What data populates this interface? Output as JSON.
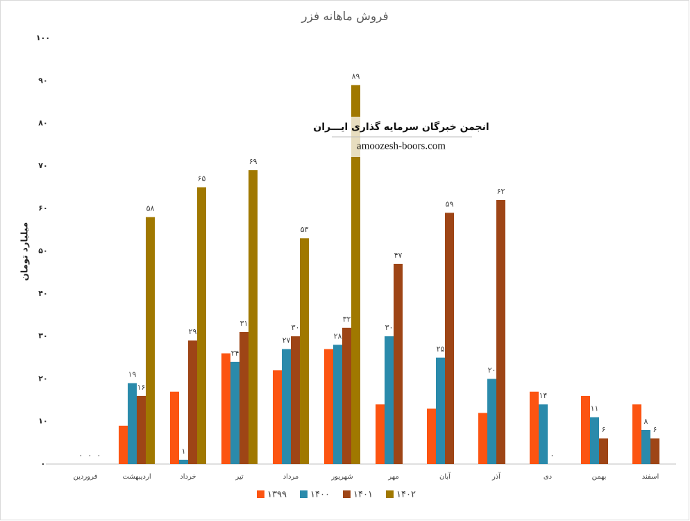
{
  "chart_data": {
    "type": "bar",
    "title": "فروش ماهانه فزر",
    "y_label": "میلیارد تومان",
    "watermark": [
      "انجمن خبرگان سرمایه گذاری ایـــران",
      "amoozesh-boors.com"
    ],
    "categories": [
      "فروردین",
      "اردیبهشت",
      "خرداد",
      "تیر",
      "مرداد",
      "شهریور",
      "مهر",
      "آبان",
      "آذر",
      "دی",
      "بهمن",
      "اسفند"
    ],
    "series": [
      {
        "name": "۱۳۹۹",
        "color": "#fc5411",
        "values": [
          0,
          9,
          17,
          26,
          22,
          27,
          14,
          13,
          12,
          17,
          16,
          14
        ]
      },
      {
        "name": "۱۴۰۰",
        "color": "#2a8aab",
        "values": [
          0,
          19,
          1,
          24,
          27,
          28,
          30,
          25,
          20,
          14,
          11,
          8
        ],
        "value_labels": [
          "۰",
          "۱۹",
          "۱",
          "۲۴",
          "۲۷",
          "۲۸",
          "۳۰",
          "۲۵",
          "۲۰",
          "۱۴",
          "۱۱",
          "۸"
        ]
      },
      {
        "name": "۱۴۰۱",
        "color": "#9e4516",
        "values": [
          0,
          16,
          29,
          31,
          30,
          32,
          47,
          59,
          62,
          0,
          6,
          6
        ],
        "value_labels": [
          "۰",
          "۱۶",
          "۲۹",
          "۳۱",
          "۳۰",
          "۳۲",
          "۴۷",
          "۵۹",
          "۶۲",
          "۰",
          "۶",
          "۶"
        ]
      },
      {
        "name": "۱۴۰۲",
        "color": "#a07800",
        "values": [
          0,
          58,
          65,
          69,
          53,
          89,
          null,
          null,
          null,
          null,
          null,
          null
        ],
        "value_labels": [
          "۰",
          "۵۸",
          "۶۵",
          "۶۹",
          "۵۳",
          "۸۹",
          null,
          null,
          null,
          null,
          null,
          null
        ]
      }
    ],
    "ylim": [
      0,
      100
    ],
    "yticks": [
      {
        "value": 0,
        "label": "۰"
      },
      {
        "value": 10,
        "label": "۱۰"
      },
      {
        "value": 20,
        "label": "۲۰"
      },
      {
        "value": 30,
        "label": "۳۰"
      },
      {
        "value": 40,
        "label": "۴۰"
      },
      {
        "value": 50,
        "label": "۵۰"
      },
      {
        "value": 60,
        "label": "۶۰"
      },
      {
        "value": 70,
        "label": "۷۰"
      },
      {
        "value": 80,
        "label": "۸۰"
      },
      {
        "value": 90,
        "label": "۹۰"
      },
      {
        "value": 100,
        "label": "۱۰۰"
      }
    ],
    "grid": false,
    "legend": "bottom"
  }
}
